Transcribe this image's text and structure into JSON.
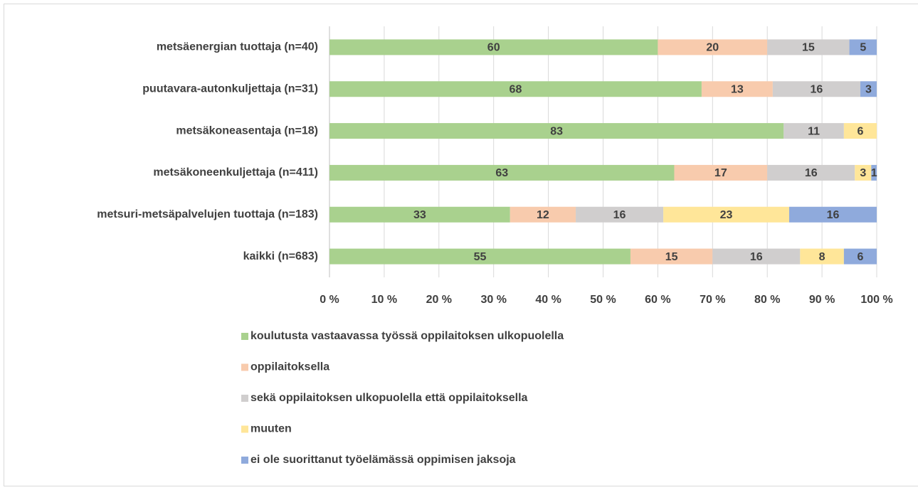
{
  "chart_data": {
    "type": "stacked_barh",
    "categories": [
      "metsäenergian tuottaja (n=40)",
      "puutavara-autonkuljettaja (n=31)",
      "metsäkoneasentaja (n=18)",
      "metsäkoneenkuljettaja (n=411)",
      "metsuri-metsäpalvelujen tuottaja (n=183)",
      "kaikki (n=683)"
    ],
    "series": [
      {
        "name": "koulutusta vastaavassa työssä oppilaitoksen ulkopuolella",
        "color": "#a9d18e",
        "values": [
          60,
          68,
          83,
          63,
          33,
          55
        ]
      },
      {
        "name": "oppilaitoksella",
        "color": "#f8cbad",
        "values": [
          20,
          13,
          null,
          17,
          12,
          15
        ]
      },
      {
        "name": "sekä oppilaitoksen ulkopuolella että oppilaitoksella",
        "color": "#d0cece",
        "values": [
          15,
          16,
          11,
          16,
          16,
          16
        ]
      },
      {
        "name": "muuten",
        "color": "#ffe699",
        "values": [
          null,
          null,
          6,
          3,
          23,
          8
        ]
      },
      {
        "name": "ei ole suorittanut työelämässä oppimisen jaksoja",
        "color": "#8faadc",
        "values": [
          5,
          3,
          null,
          1,
          16,
          6
        ]
      }
    ],
    "xlim": [
      0,
      100
    ],
    "xticks": [
      {
        "value": 0,
        "label": "0 %"
      },
      {
        "value": 10,
        "label": "10 %"
      },
      {
        "value": 20,
        "label": "20 %"
      },
      {
        "value": 30,
        "label": "30 %"
      },
      {
        "value": 40,
        "label": "40 %"
      },
      {
        "value": 50,
        "label": "50 %"
      },
      {
        "value": 60,
        "label": "60 %"
      },
      {
        "value": 70,
        "label": "70 %"
      },
      {
        "value": 80,
        "label": "80 %"
      },
      {
        "value": 90,
        "label": "90 %"
      },
      {
        "value": 100,
        "label": "100 %"
      }
    ],
    "grid": true,
    "legend": "bottom"
  }
}
